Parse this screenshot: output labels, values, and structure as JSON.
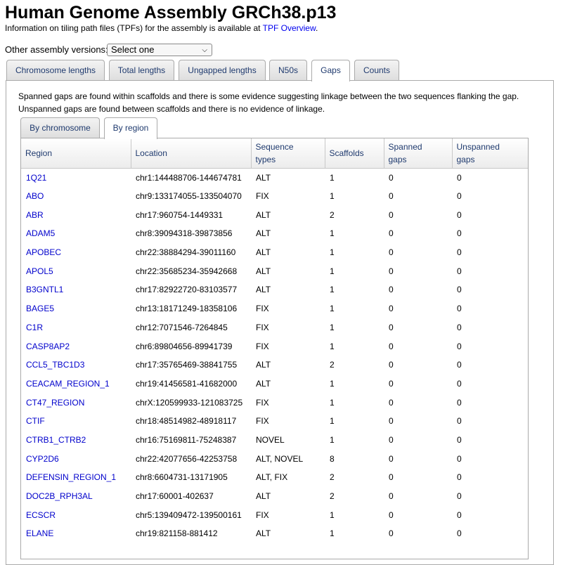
{
  "page": {
    "title": "Human Genome Assembly GRCh38.p13",
    "intro_text": "Information on tiling path files (TPFs) for the assembly is available at ",
    "intro_link": "TPF Overview",
    "intro_end": "."
  },
  "versions": {
    "label": "Other assembly versions:",
    "selected": "Select one"
  },
  "tabs": [
    {
      "label": "Chromosome lengths"
    },
    {
      "label": "Total lengths"
    },
    {
      "label": "Ungapped lengths"
    },
    {
      "label": "N50s"
    },
    {
      "label": "Gaps"
    },
    {
      "label": "Counts"
    }
  ],
  "gaps": {
    "desc_line1": "Spanned gaps are found within scaffolds and there is some evidence suggesting linkage between the two sequences flanking the gap.",
    "desc_line2": "Unspanned gaps are found between scaffolds and there is no evidence of linkage.",
    "subtabs": [
      {
        "label": "By chromosome"
      },
      {
        "label": "By region"
      }
    ],
    "columns": {
      "region": "Region",
      "location": "Location",
      "seq1": "Sequence",
      "seq2": "types",
      "scaffolds": "Scaffolds",
      "spanned1": "Spanned",
      "spanned2": "gaps",
      "unspanned1": "Unspanned",
      "unspanned2": "gaps"
    },
    "rows": [
      {
        "region": "1Q21",
        "location": "chr1:144488706-144674781",
        "types": "ALT",
        "scaffolds": "1",
        "spanned": "0",
        "unspanned": "0"
      },
      {
        "region": "ABO",
        "location": "chr9:133174055-133504070",
        "types": "FIX",
        "scaffolds": "1",
        "spanned": "0",
        "unspanned": "0"
      },
      {
        "region": "ABR",
        "location": "chr17:960754-1449331",
        "types": "ALT",
        "scaffolds": "2",
        "spanned": "0",
        "unspanned": "0"
      },
      {
        "region": "ADAM5",
        "location": "chr8:39094318-39873856",
        "types": "ALT",
        "scaffolds": "1",
        "spanned": "0",
        "unspanned": "0"
      },
      {
        "region": "APOBEC",
        "location": "chr22:38884294-39011160",
        "types": "ALT",
        "scaffolds": "1",
        "spanned": "0",
        "unspanned": "0"
      },
      {
        "region": "APOL5",
        "location": "chr22:35685234-35942668",
        "types": "ALT",
        "scaffolds": "1",
        "spanned": "0",
        "unspanned": "0"
      },
      {
        "region": "B3GNTL1",
        "location": "chr17:82922720-83103577",
        "types": "ALT",
        "scaffolds": "1",
        "spanned": "0",
        "unspanned": "0"
      },
      {
        "region": "BAGE5",
        "location": "chr13:18171249-18358106",
        "types": "FIX",
        "scaffolds": "1",
        "spanned": "0",
        "unspanned": "0"
      },
      {
        "region": "C1R",
        "location": "chr12:7071546-7264845",
        "types": "FIX",
        "scaffolds": "1",
        "spanned": "0",
        "unspanned": "0"
      },
      {
        "region": "CASP8AP2",
        "location": "chr6:89804656-89941739",
        "types": "FIX",
        "scaffolds": "1",
        "spanned": "0",
        "unspanned": "0"
      },
      {
        "region": "CCL5_TBC1D3",
        "location": "chr17:35765469-38841755",
        "types": "ALT",
        "scaffolds": "2",
        "spanned": "0",
        "unspanned": "0"
      },
      {
        "region": "CEACAM_REGION_1",
        "location": "chr19:41456581-41682000",
        "types": "ALT",
        "scaffolds": "1",
        "spanned": "0",
        "unspanned": "0"
      },
      {
        "region": "CT47_REGION",
        "location": "chrX:120599933-121083725",
        "types": "FIX",
        "scaffolds": "1",
        "spanned": "0",
        "unspanned": "0"
      },
      {
        "region": "CTIF",
        "location": "chr18:48514982-48918117",
        "types": "FIX",
        "scaffolds": "1",
        "spanned": "0",
        "unspanned": "0"
      },
      {
        "region": "CTRB1_CTRB2",
        "location": "chr16:75169811-75248387",
        "types": "NOVEL",
        "scaffolds": "1",
        "spanned": "0",
        "unspanned": "0"
      },
      {
        "region": "CYP2D6",
        "location": "chr22:42077656-42253758",
        "types": "ALT, NOVEL",
        "scaffolds": "8",
        "spanned": "0",
        "unspanned": "0"
      },
      {
        "region": "DEFENSIN_REGION_1",
        "location": "chr8:6604731-13171905",
        "types": "ALT, FIX",
        "scaffolds": "2",
        "spanned": "0",
        "unspanned": "0"
      },
      {
        "region": "DOC2B_RPH3AL",
        "location": "chr17:60001-402637",
        "types": "ALT",
        "scaffolds": "2",
        "spanned": "0",
        "unspanned": "0"
      },
      {
        "region": "ECSCR",
        "location": "chr5:139409472-139500161",
        "types": "FIX",
        "scaffolds": "1",
        "spanned": "0",
        "unspanned": "0"
      },
      {
        "region": "ELANE",
        "location": "chr19:821158-881412",
        "types": "ALT",
        "scaffolds": "1",
        "spanned": "0",
        "unspanned": "0"
      }
    ]
  }
}
